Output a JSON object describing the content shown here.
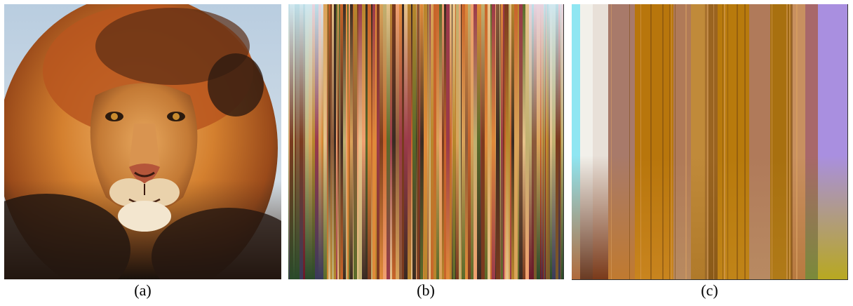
{
  "panels": [
    {
      "caption": "(a)"
    },
    {
      "caption": "(b)"
    },
    {
      "caption": "(c)"
    }
  ],
  "colors": {
    "sky": "#c9d7e3",
    "mane_orange": "#c8642a",
    "mane_light": "#e7b06a",
    "fur_gold": "#d9974d",
    "dark_mane": "#2a1c14",
    "muzzle": "#f1e2c8",
    "stripe_gold": "#b4782c",
    "stripe_tan": "#b7845a",
    "lavender": "#a98fe0",
    "cyan": "#8fe6f2"
  }
}
